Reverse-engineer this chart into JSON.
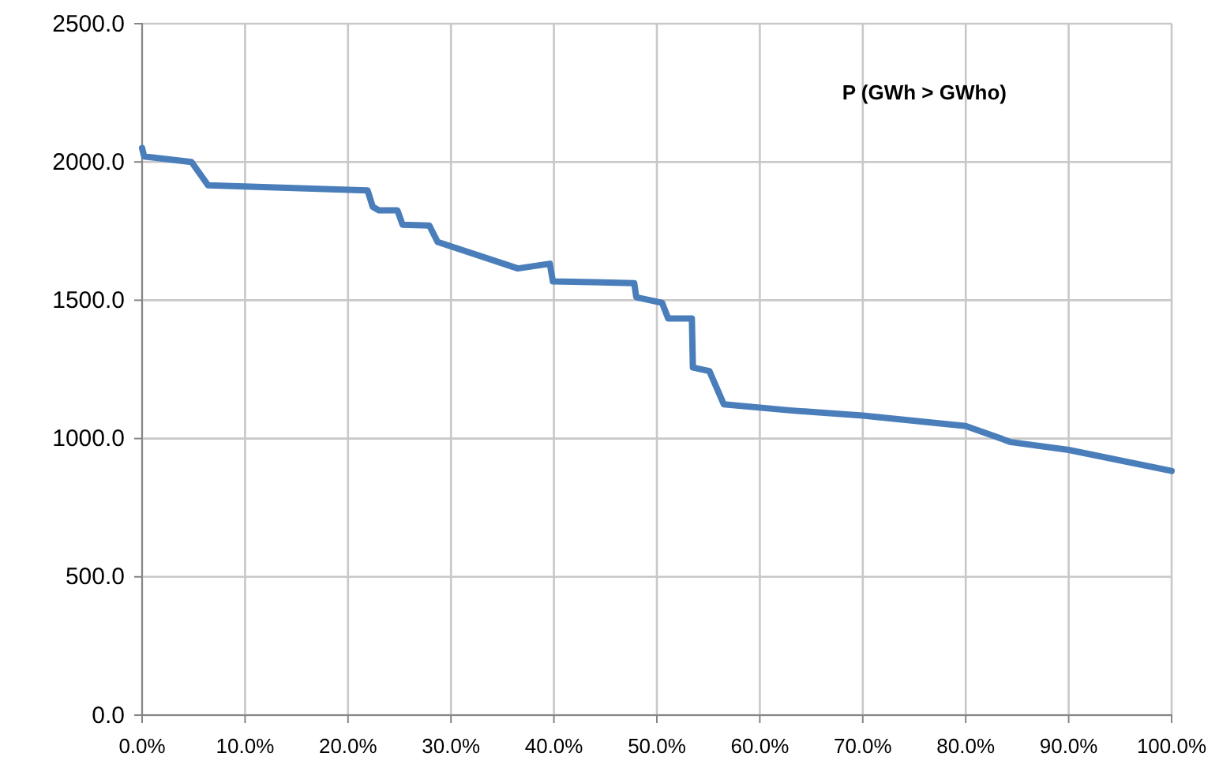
{
  "chart_data": {
    "type": "line",
    "annotations": [
      "P (GWh  > GWho)"
    ],
    "x": [
      0,
      0.2,
      4.8,
      6.4,
      21.9,
      22.4,
      23,
      24.8,
      25.3,
      27.9,
      28.7,
      36.5,
      39.6,
      39.9,
      47.8,
      48,
      50.5,
      51.1,
      53.4,
      53.5,
      55.1,
      56.5,
      62.9,
      70,
      80,
      84.4,
      90,
      100
    ],
    "series": [
      {
        "color": "#4a7ebb",
        "values": [
          2050,
          2020,
          2000,
          1916,
          1897,
          1838,
          1825,
          1825,
          1773,
          1770,
          1711,
          1615,
          1632,
          1568,
          1562,
          1511,
          1491,
          1434,
          1434,
          1257,
          1244,
          1124,
          1102,
          1083,
          1045,
          987,
          959,
          883
        ]
      }
    ],
    "xlim": [
      0,
      100
    ],
    "ylim": [
      0,
      2500
    ],
    "xticks": [
      {
        "value": 0,
        "label": "0.0%"
      },
      {
        "value": 10,
        "label": "10.0%"
      },
      {
        "value": 20,
        "label": "20.0%"
      },
      {
        "value": 30,
        "label": "30.0%"
      },
      {
        "value": 40,
        "label": "40.0%"
      },
      {
        "value": 50,
        "label": "50.0%"
      },
      {
        "value": 60,
        "label": "60.0%"
      },
      {
        "value": 70,
        "label": "70.0%"
      },
      {
        "value": 80,
        "label": "80.0%"
      },
      {
        "value": 90,
        "label": "90.0%"
      },
      {
        "value": 100,
        "label": "100.0%"
      }
    ],
    "yticks": [
      {
        "value": 0,
        "label": "0.0"
      },
      {
        "value": 500,
        "label": "500.0"
      },
      {
        "value": 1000,
        "label": "1000.0"
      },
      {
        "value": 1500,
        "label": "1500.0"
      },
      {
        "value": 2000,
        "label": "2000.0"
      },
      {
        "value": 2500,
        "label": "2500.0"
      }
    ],
    "grid": true,
    "line_style": "solid",
    "marker": "none"
  }
}
